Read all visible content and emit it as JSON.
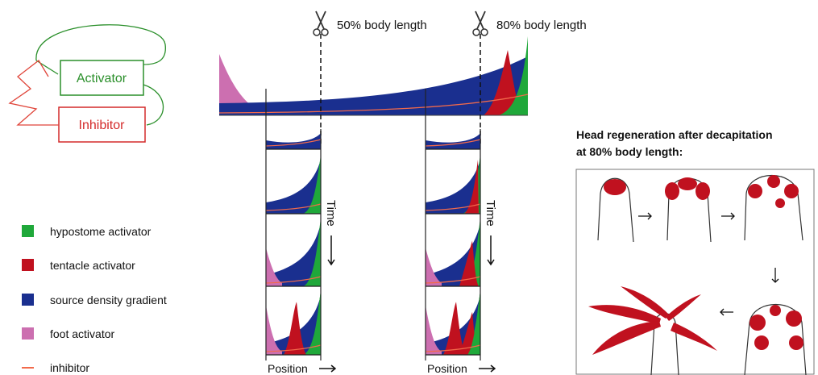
{
  "model": {
    "activator": "Activator",
    "inhibitor": "Inhibitor"
  },
  "cuts": [
    "50% body length",
    "80% body length"
  ],
  "axes": {
    "time": "Time",
    "position": "Position"
  },
  "legend": [
    {
      "label": "hypostome activator",
      "color": "#1fa83a"
    },
    {
      "label": "tentacle activator",
      "color": "#c0111f"
    },
    {
      "label": "source density gradient",
      "color": "#1a2f8f"
    },
    {
      "label": "foot activator",
      "color": "#cc6fb0"
    },
    {
      "label": "inhibitor",
      "color": "#f26a4b"
    }
  ],
  "inset": {
    "title": [
      "Head regeneration after decapitation",
      "at 80% body length:"
    ]
  }
}
